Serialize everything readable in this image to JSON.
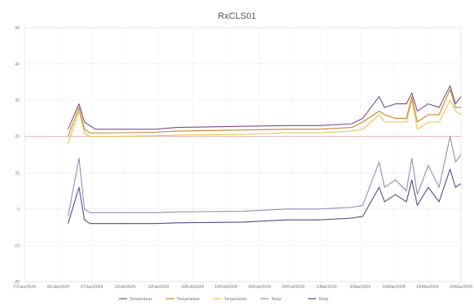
{
  "chart_data": {
    "type": "line",
    "title": "RxCLS01",
    "grid": true,
    "legend_position": "bottom",
    "x_tick_labels": [
      "27/Jan/2024",
      "26/Jan/2024",
      "27/Jan/2024",
      "1/Feb/2024",
      "5/Feb/2024",
      "10/Feb/2024",
      "15/Feb/2024",
      "20/Feb/2024",
      "25/Feb/2024",
      "1/Mar/2024",
      "5/Mar/2024",
      "10/Mar/2024",
      "15/Mar/2024",
      "20/Mar/2024"
    ],
    "y_tick_labels": [
      "50",
      "40",
      "30",
      "20",
      "10",
      "0",
      "-10",
      "-20"
    ],
    "ylim": [
      -20,
      50
    ],
    "x": [
      0,
      1,
      1.5,
      2,
      2.5,
      3,
      4,
      8,
      10,
      16,
      20,
      23,
      26,
      27,
      28.5,
      29,
      30,
      31,
      31.5,
      32,
      33,
      34,
      35,
      35.5,
      36
    ],
    "series": [
      {
        "name": "Temperature",
        "color": "#7b4c8c",
        "values": [
          22,
          29,
          24,
          23,
          22,
          22,
          22,
          22,
          22.5,
          22.8,
          23,
          23,
          23.5,
          25,
          31,
          28,
          29,
          29,
          32,
          27,
          29,
          28,
          34,
          29,
          31
        ]
      },
      {
        "name": "Temperature",
        "color": "#c9842f",
        "values": [
          20,
          28,
          22,
          21,
          21,
          21,
          21,
          21.2,
          21.5,
          21.8,
          22,
          22,
          22.5,
          24,
          27,
          26,
          25,
          25,
          31,
          24,
          26,
          26,
          33,
          28,
          28
        ]
      },
      {
        "name": "Temperature",
        "color": "#e8c54d",
        "values": [
          18,
          27,
          21,
          20,
          20,
          20,
          20,
          20.2,
          20.4,
          20.6,
          21,
          21,
          21.5,
          22,
          26,
          24,
          24,
          24,
          30,
          22,
          24,
          24,
          30,
          27,
          26
        ]
      },
      {
        "name": "Temperature",
        "color": "#8f90b8",
        "values": [
          -2,
          14,
          0,
          -1,
          -1,
          -1,
          -1,
          -1,
          -0.8,
          -0.6,
          0,
          0,
          0.5,
          1,
          13,
          6,
          8,
          5,
          14,
          4,
          12,
          6,
          20,
          13,
          15
        ]
      },
      {
        "name": "Temp",
        "color": "#4b4f86",
        "values": [
          -4,
          6,
          -3,
          -4,
          -4,
          -4,
          -4,
          -4,
          -3.8,
          -3.6,
          -3,
          -3,
          -2.5,
          -2,
          6,
          2,
          4,
          2,
          8,
          1,
          6,
          2,
          11,
          6,
          7
        ]
      }
    ],
    "legend": [
      {
        "label": "Temperature",
        "color": "#7b4c8c"
      },
      {
        "label": "Temperature",
        "color": "#c9842f"
      },
      {
        "label": "Temperature",
        "color": "#e8c54d"
      },
      {
        "label": "Temp",
        "color": "#8f90b8"
      },
      {
        "label": "Temp",
        "color": "#4b4f86"
      }
    ]
  }
}
